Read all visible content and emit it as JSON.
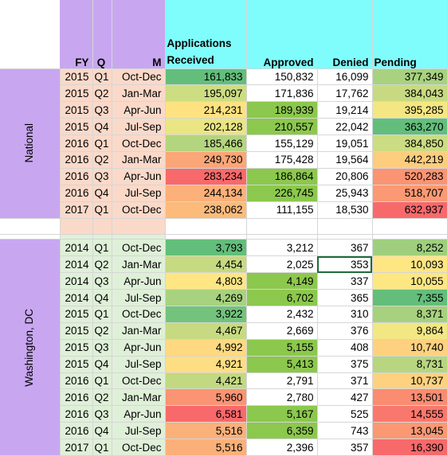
{
  "headers": {
    "fy": "FY",
    "q": "Q",
    "m": "M",
    "applications_line1": "Applications",
    "received": "Received",
    "approved": "Approved",
    "denied": "Denied",
    "pending": "Pending"
  },
  "sections": [
    {
      "label": "National",
      "rows": [
        {
          "fy": "2015",
          "q": "Q1",
          "m": "Oct-Dec",
          "received": "161,833",
          "approved": "150,832",
          "denied": "16,099",
          "pending": "377,349",
          "c_received": "#63be7b",
          "c_approved": "#ffffff",
          "c_denied": "#ffffff",
          "c_pending": "#a8d27f"
        },
        {
          "fy": "2015",
          "q": "Q2",
          "m": "Jan-Mar",
          "received": "195,097",
          "approved": "171,836",
          "denied": "17,762",
          "pending": "384,043",
          "c_received": "#cddd82",
          "c_approved": "#ffffff",
          "c_denied": "#ffffff",
          "c_pending": "#c8da81"
        },
        {
          "fy": "2015",
          "q": "Q3",
          "m": "Apr-Jun",
          "received": "214,231",
          "approved": "189,939",
          "denied": "19,214",
          "pending": "395,285",
          "c_received": "#fee282",
          "c_approved": "#8cc84d",
          "c_denied": "#ffffff",
          "c_pending": "#f4e783"
        },
        {
          "fy": "2015",
          "q": "Q4",
          "m": "Jul-Sep",
          "received": "202,128",
          "approved": "210,557",
          "denied": "22,042",
          "pending": "363,270",
          "c_received": "#eae583",
          "c_approved": "#8cc84d",
          "c_denied": "#ffffff",
          "c_pending": "#63be7b"
        },
        {
          "fy": "2016",
          "q": "Q1",
          "m": "Oct-Dec",
          "received": "185,466",
          "approved": "155,129",
          "denied": "19,051",
          "pending": "384,850",
          "c_received": "#b4d57f",
          "c_approved": "#ffffff",
          "c_denied": "#ffffff",
          "c_pending": "#ccdc82"
        },
        {
          "fy": "2016",
          "q": "Q2",
          "m": "Jan-Mar",
          "received": "249,730",
          "approved": "175,428",
          "denied": "19,564",
          "pending": "442,219",
          "c_received": "#fba677",
          "c_approved": "#ffffff",
          "c_denied": "#ffffff",
          "c_pending": "#fdcd7e"
        },
        {
          "fy": "2016",
          "q": "Q3",
          "m": "Apr-Jun",
          "received": "283,234",
          "approved": "186,864",
          "denied": "20,806",
          "pending": "520,283",
          "c_received": "#f8696b",
          "c_approved": "#8cc84d",
          "c_denied": "#ffffff",
          "c_pending": "#fa9473"
        },
        {
          "fy": "2016",
          "q": "Q4",
          "m": "Jul-Sep",
          "received": "244,134",
          "approved": "226,745",
          "denied": "25,943",
          "pending": "518,707",
          "c_received": "#fcb079",
          "c_approved": "#8cc84d",
          "c_denied": "#ffffff",
          "c_pending": "#fa9974"
        },
        {
          "fy": "2017",
          "q": "Q1",
          "m": "Oct-Dec",
          "received": "238,062",
          "approved": "111,155",
          "denied": "18,530",
          "pending": "632,937",
          "c_received": "#fcbb7b",
          "c_approved": "#ffffff",
          "c_denied": "#ffffff",
          "c_pending": "#f8696b"
        }
      ]
    },
    {
      "label": "Washington, DC",
      "rows": [
        {
          "fy": "2014",
          "q": "Q1",
          "m": "Oct-Dec",
          "received": "3,793",
          "approved": "3,212",
          "denied": "367",
          "pending": "8,252",
          "c_received": "#63be7b",
          "c_approved": "#ffffff",
          "c_denied": "#ffffff",
          "c_pending": "#9fcf7e"
        },
        {
          "fy": "2014",
          "q": "Q2",
          "m": "Jan-Mar",
          "received": "4,454",
          "approved": "2,025",
          "denied": "353",
          "pending": "10,093",
          "c_received": "#c6da81",
          "c_approved": "#ffffff",
          "c_denied": "#ffffff",
          "c_pending": "#fee683"
        },
        {
          "fy": "2014",
          "q": "Q3",
          "m": "Apr-Jun",
          "received": "4,803",
          "approved": "4,149",
          "denied": "337",
          "pending": "10,055",
          "c_received": "#fde683",
          "c_approved": "#8cc84d",
          "c_denied": "#ffffff",
          "c_pending": "#fde783"
        },
        {
          "fy": "2014",
          "q": "Q4",
          "m": "Jul-Sep",
          "received": "4,269",
          "approved": "6,702",
          "denied": "365",
          "pending": "7,355",
          "c_received": "#a8d27f",
          "c_approved": "#8cc84d",
          "c_denied": "#ffffff",
          "c_pending": "#63be7b"
        },
        {
          "fy": "2015",
          "q": "Q1",
          "m": "Oct-Dec",
          "received": "3,922",
          "approved": "2,432",
          "denied": "310",
          "pending": "8,371",
          "c_received": "#73c37c",
          "c_approved": "#ffffff",
          "c_denied": "#ffffff",
          "c_pending": "#a6d17e"
        },
        {
          "fy": "2015",
          "q": "Q2",
          "m": "Jan-Mar",
          "received": "4,467",
          "approved": "2,669",
          "denied": "376",
          "pending": "9,864",
          "c_received": "#c8da81",
          "c_approved": "#ffffff",
          "c_denied": "#ffffff",
          "c_pending": "#f3e783"
        },
        {
          "fy": "2015",
          "q": "Q3",
          "m": "Apr-Jun",
          "received": "4,992",
          "approved": "5,155",
          "denied": "408",
          "pending": "10,740",
          "c_received": "#fed981",
          "c_approved": "#8cc84d",
          "c_denied": "#ffffff",
          "c_pending": "#fdd17f"
        },
        {
          "fy": "2015",
          "q": "Q4",
          "m": "Jul-Sep",
          "received": "4,921",
          "approved": "5,413",
          "denied": "375",
          "pending": "8,731",
          "c_received": "#fede82",
          "c_approved": "#8cc84d",
          "c_denied": "#ffffff",
          "c_pending": "#b8d680"
        },
        {
          "fy": "2016",
          "q": "Q1",
          "m": "Oct-Dec",
          "received": "4,421",
          "approved": "2,791",
          "denied": "371",
          "pending": "10,737",
          "c_received": "#c2d981",
          "c_approved": "#ffffff",
          "c_denied": "#ffffff",
          "c_pending": "#fdd17f"
        },
        {
          "fy": "2016",
          "q": "Q2",
          "m": "Jan-Mar",
          "received": "5,960",
          "approved": "2,780",
          "denied": "427",
          "pending": "13,501",
          "c_received": "#fa9473",
          "c_approved": "#ffffff",
          "c_denied": "#ffffff",
          "c_pending": "#fa8c72"
        },
        {
          "fy": "2016",
          "q": "Q3",
          "m": "Apr-Jun",
          "received": "6,581",
          "approved": "5,167",
          "denied": "525",
          "pending": "14,555",
          "c_received": "#f8696b",
          "c_approved": "#8cc84d",
          "c_denied": "#ffffff",
          "c_pending": "#f9786e"
        },
        {
          "fy": "2016",
          "q": "Q4",
          "m": "Jul-Sep",
          "received": "5,516",
          "approved": "6,359",
          "denied": "743",
          "pending": "13,045",
          "c_received": "#fcb079",
          "c_approved": "#8cc84d",
          "c_denied": "#ffffff",
          "c_pending": "#fb9874"
        },
        {
          "fy": "2017",
          "q": "Q1",
          "m": "Oct-Dec",
          "received": "5,516",
          "approved": "2,396",
          "denied": "357",
          "pending": "16,390",
          "c_received": "#fcb079",
          "c_approved": "#ffffff",
          "c_denied": "#ffffff",
          "c_pending": "#f8696b"
        }
      ]
    }
  ],
  "selected_cell": {
    "section": 1,
    "row": 1,
    "column": "denied"
  }
}
